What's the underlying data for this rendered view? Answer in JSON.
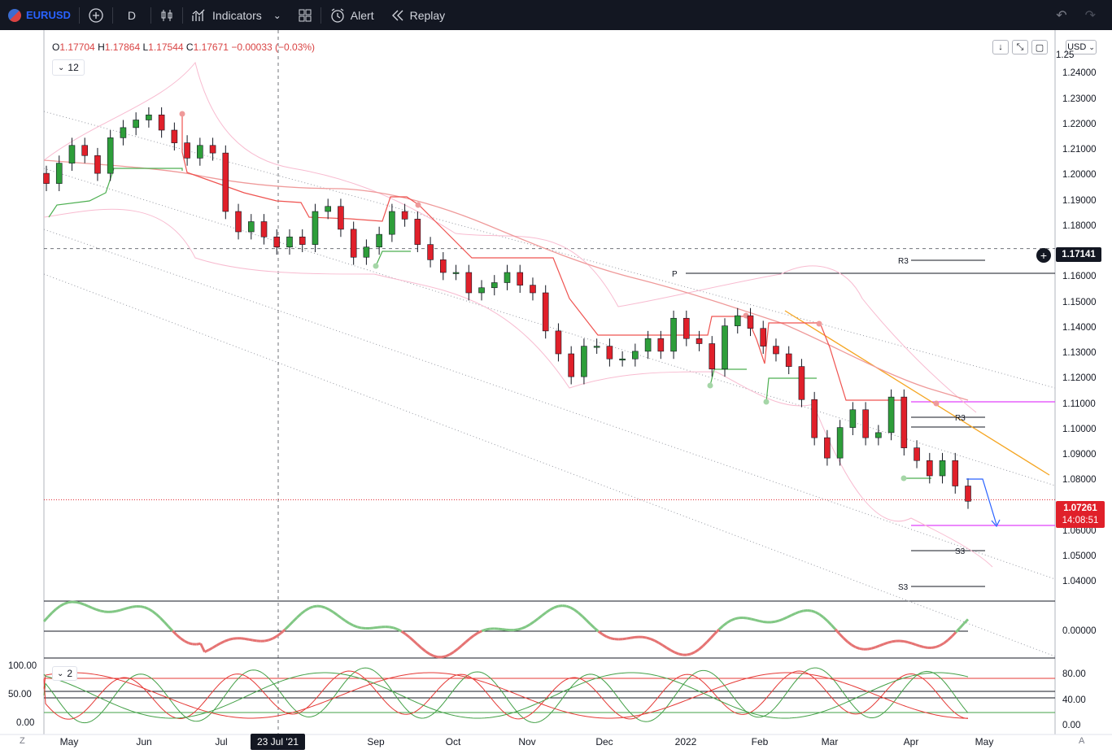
{
  "toolbar": {
    "symbol": "EURUSD",
    "interval": "D",
    "indicators_label": "Indicators",
    "alert_label": "Alert",
    "replay_label": "Replay"
  },
  "legend": {
    "open_label": "O",
    "open": "1.17704",
    "high_label": "H",
    "high": "1.17864",
    "low_label": "L",
    "low": "1.17544",
    "close_label": "C",
    "close": "1.17671",
    "change": "−0.00033 (−0.03%)",
    "sub_value": "12",
    "osc_sub_value": "2"
  },
  "price_axis": {
    "currency": "USD",
    "ticks": [
      "1.24000",
      "1.23000",
      "1.22000",
      "1.21000",
      "1.20000",
      "1.19000",
      "1.18000",
      "1.16000",
      "1.15000",
      "1.14000",
      "1.13000",
      "1.12000",
      "1.11000",
      "1.10000",
      "1.09000",
      "1.08000",
      "1.06000",
      "1.05000",
      "1.04000"
    ],
    "top_partial": "1.25",
    "crosshair_price": "1.17141",
    "last_price": "1.07261",
    "countdown": "14:08:51"
  },
  "osc_axis": {
    "pane1_tick": "0.00000",
    "pane2_left_ticks": [
      "100.00",
      "50.00",
      "0.00"
    ],
    "pane2_right_ticks": [
      "80.00",
      "40.00",
      "0.00"
    ]
  },
  "pivot_labels": {
    "r3_top": "R3",
    "p": "P",
    "r3_mid": "R3",
    "s3_a": "S3",
    "s3_b": "S3"
  },
  "time_axis": {
    "labels": [
      "May",
      "Jun",
      "Jul",
      "Sep",
      "Oct",
      "Nov",
      "Dec",
      "2022",
      "Feb",
      "Mar",
      "Apr",
      "May"
    ],
    "highlight": "23 Jul '21",
    "left_corner": "Z",
    "right_corner": "A"
  },
  "colors": {
    "up": "#26a69a",
    "down": "#ef5350",
    "up_green": "#2e9e3a",
    "down_red": "#e0202a",
    "accent": "#2962ff",
    "magenta": "#e040fb",
    "orange": "#f5a623"
  },
  "chart_data": {
    "type": "candlestick",
    "symbol": "EURUSD",
    "interval": "D",
    "ylim": [
      1.035,
      1.25
    ],
    "crosshair_price": 1.17141,
    "last_price": 1.07261,
    "pivot_levels": {
      "R3_top": 1.17,
      "P": 1.1635,
      "R3_mid": 1.1075,
      "S3_a": 1.055,
      "S3_b": 1.0415
    },
    "close_series": [
      1.197,
      1.205,
      1.212,
      1.208,
      1.201,
      1.215,
      1.219,
      1.222,
      1.224,
      1.218,
      1.213,
      1.207,
      1.212,
      1.209,
      1.186,
      1.178,
      1.182,
      1.176,
      1.172,
      1.176,
      1.173,
      1.186,
      1.188,
      1.179,
      1.168,
      1.172,
      1.177,
      1.186,
      1.183,
      1.173,
      1.167,
      1.162,
      1.162,
      1.154,
      1.156,
      1.158,
      1.162,
      1.157,
      1.154,
      1.139,
      1.13,
      1.121,
      1.133,
      1.133,
      1.128,
      1.128,
      1.131,
      1.136,
      1.131,
      1.144,
      1.136,
      1.134,
      1.124,
      1.141,
      1.145,
      1.14,
      1.133,
      1.13,
      1.125,
      1.112,
      1.097,
      1.089,
      1.101,
      1.108,
      1.097,
      1.099,
      1.113,
      1.093,
      1.088,
      1.082,
      1.088,
      1.078,
      1.072
    ]
  }
}
